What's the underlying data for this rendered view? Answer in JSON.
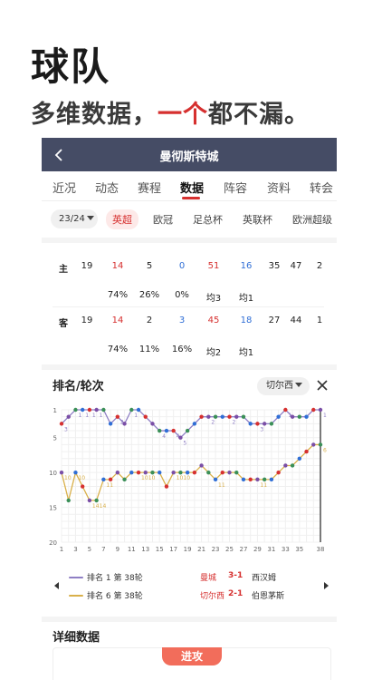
{
  "promo": {
    "title": "球队",
    "subtitle_before": "多维数据，",
    "subtitle_accent": "一个",
    "subtitle_after": "都不漏。"
  },
  "navbar": {
    "back_icon": "chevron-left-icon",
    "title": "曼彻斯特城"
  },
  "tabs": [
    {
      "label": "近况"
    },
    {
      "label": "动态"
    },
    {
      "label": "赛程"
    },
    {
      "label": "数据",
      "active": true
    },
    {
      "label": "阵容"
    },
    {
      "label": "资料"
    },
    {
      "label": "转会"
    }
  ],
  "filters": {
    "season": "23/24",
    "leagues": [
      "英超",
      "欧冠",
      "足总杯",
      "英联杯",
      "欧洲超级"
    ],
    "active_league": "英超"
  },
  "stats": {
    "home": {
      "label": "主",
      "row1": [
        "19",
        "14",
        "5",
        "0",
        "51",
        "16",
        "35",
        "47",
        "2"
      ],
      "row2": [
        "74%",
        "26%",
        "0%",
        "均3",
        "均1"
      ]
    },
    "away": {
      "label": "客",
      "row1": [
        "19",
        "14",
        "2",
        "3",
        "45",
        "18",
        "27",
        "44",
        "1"
      ],
      "row2": [
        "74%",
        "11%",
        "16%",
        "均2",
        "均1"
      ]
    },
    "colors": {
      "red": "#d6302f",
      "blue": "#2f6ed6"
    }
  },
  "ranking": {
    "title": "排名/轮次",
    "team_select": "切尔西",
    "close_icon": "close-icon",
    "legend": [
      {
        "name": "排名 1  第 38轮",
        "color": "#8f7fc4",
        "home": "曼城",
        "score": "3-1",
        "away": "西汉姆"
      },
      {
        "name": "排名 6  第 38轮",
        "color": "#d9b04a",
        "home": "切尔西",
        "score": "2-1",
        "away": "伯恩茅斯"
      }
    ]
  },
  "chart_data": {
    "type": "line",
    "title": "排名/轮次",
    "x": [
      1,
      2,
      3,
      4,
      5,
      6,
      7,
      8,
      9,
      10,
      11,
      12,
      13,
      14,
      15,
      16,
      17,
      18,
      19,
      20,
      21,
      22,
      23,
      24,
      25,
      26,
      27,
      28,
      29,
      30,
      31,
      32,
      33,
      34,
      35,
      36,
      37,
      38
    ],
    "x_ticks": [
      1,
      3,
      5,
      7,
      9,
      11,
      13,
      15,
      17,
      19,
      21,
      23,
      25,
      27,
      29,
      31,
      33,
      35,
      38
    ],
    "y_ticks": [
      1,
      5,
      10,
      15,
      20
    ],
    "ylim": [
      1,
      20
    ],
    "y_inverted": true,
    "grid": true,
    "series": [
      {
        "name": "曼城",
        "color": "#8f7fc4",
        "values": [
          3,
          2,
          1,
          1,
          1,
          1,
          1,
          3,
          2,
          3,
          1,
          1,
          2,
          3,
          4,
          4,
          4,
          5,
          4,
          3,
          2,
          2,
          2,
          2,
          2,
          2,
          2,
          3,
          3,
          3,
          3,
          2,
          1,
          2,
          2,
          2,
          1,
          1
        ],
        "labels": [
          "3",
          "",
          "1",
          "1",
          "1",
          "1",
          "",
          "",
          "2",
          "",
          "1",
          "",
          "",
          "",
          "4",
          "",
          "4",
          "5",
          "",
          "",
          "",
          "2",
          "",
          "",
          "2",
          "",
          "",
          "",
          "3",
          "",
          "",
          "",
          "1",
          "",
          "",
          "",
          "",
          "1"
        ]
      },
      {
        "name": "切尔西",
        "color": "#d9b04a",
        "values": [
          10,
          14,
          10,
          12,
          14,
          14,
          11,
          11,
          10,
          11,
          10,
          10,
          10,
          10,
          10,
          12,
          10,
          10,
          10,
          10,
          9,
          10,
          11,
          10,
          10,
          10,
          11,
          11,
          11,
          11,
          11,
          10,
          9,
          9,
          8,
          7,
          6,
          6
        ],
        "labels": [
          "10",
          "",
          "10",
          "",
          "14",
          "14",
          "11",
          "",
          "",
          "",
          "",
          "10",
          "10",
          "",
          "",
          "",
          "10",
          "10",
          "",
          "",
          "",
          "",
          "11",
          "",
          "",
          "",
          "",
          "",
          "11",
          "",
          "",
          "",
          "",
          "",
          "",
          "",
          "",
          "6"
        ]
      }
    ]
  },
  "detail": {
    "title": "详细数据",
    "tab": "进攻"
  }
}
